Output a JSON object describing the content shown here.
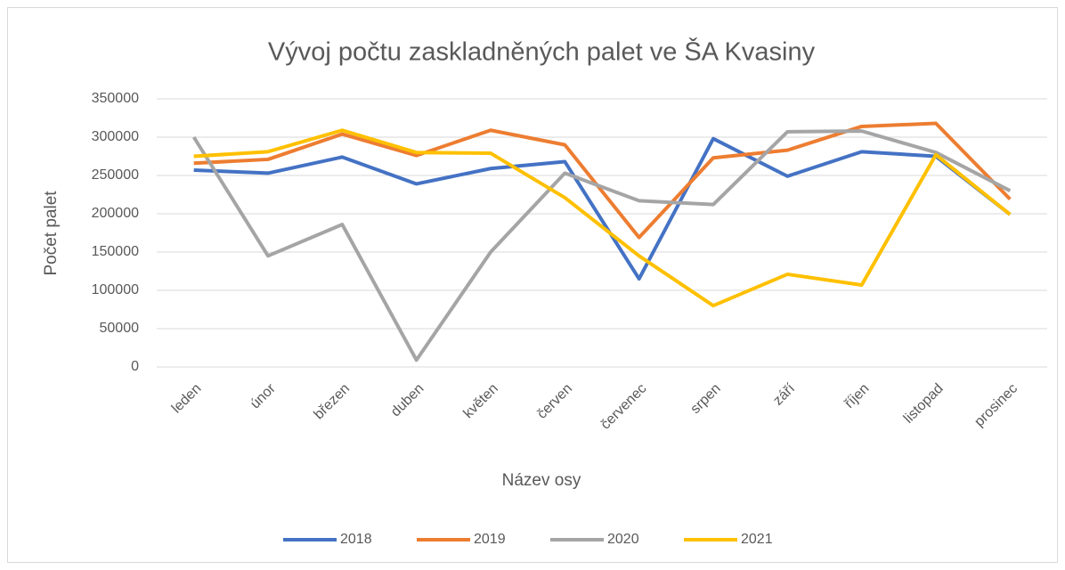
{
  "chart_data": {
    "type": "line",
    "title": "Vývoj počtu zaskladněných palet ve ŠA Kvasiny",
    "x_label": "Název osy",
    "y_label": "Počet palet",
    "categories": [
      "leden",
      "únor",
      "březen",
      "duben",
      "květen",
      "červen",
      "červenec",
      "srpen",
      "září",
      "říjen",
      "listopad",
      "prosinec"
    ],
    "series": [
      {
        "name": "2018",
        "color": "#4472c4",
        "values": [
          257000,
          253000,
          274000,
          239000,
          259000,
          268000,
          115000,
          298000,
          249000,
          281000,
          275000,
          199000
        ]
      },
      {
        "name": "2019",
        "color": "#ed7d31",
        "values": [
          266000,
          271000,
          304000,
          276000,
          309000,
          290000,
          169000,
          273000,
          283000,
          314000,
          318000,
          219000
        ]
      },
      {
        "name": "2020",
        "color": "#a5a5a5",
        "values": [
          300000,
          145000,
          186000,
          9000,
          150000,
          253000,
          217000,
          212000,
          307000,
          308000,
          280000,
          230000
        ]
      },
      {
        "name": "2021",
        "color": "#ffc000",
        "values": [
          275000,
          281000,
          309000,
          280000,
          279000,
          221000,
          145000,
          80000,
          121000,
          107000,
          277000,
          199000
        ]
      }
    ],
    "ylim": [
      0,
      350000
    ],
    "yticks": [
      0,
      50000,
      100000,
      150000,
      200000,
      250000,
      300000,
      350000
    ],
    "grid": true,
    "legend": "bottom"
  }
}
